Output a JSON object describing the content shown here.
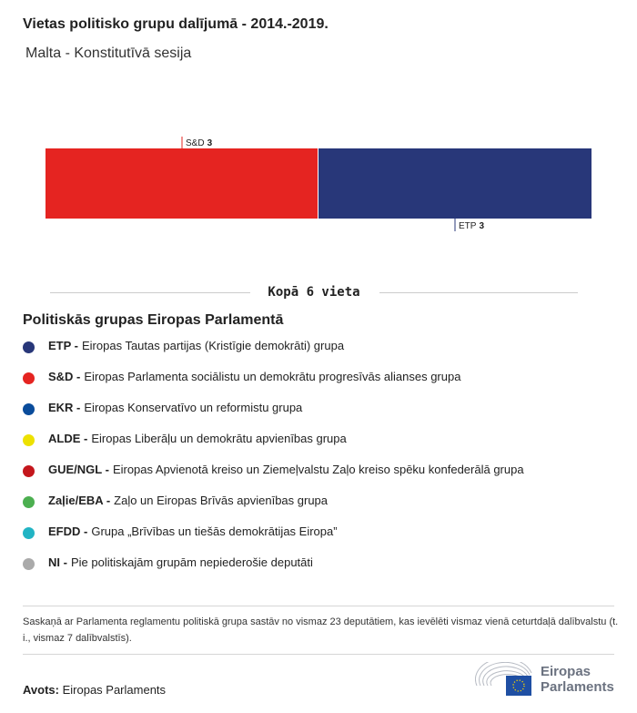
{
  "title": "Vietas politisko grupu dalījumā - 2014.-2019.",
  "subtitle": "Malta - Konstitutīvā sesija",
  "chart_data": {
    "type": "bar",
    "orientation": "horizontal-stacked",
    "categories": [
      "S&D",
      "ETP"
    ],
    "values": [
      3,
      3
    ],
    "colors": [
      "#e52421",
      "#283779"
    ],
    "label_positions": [
      "top",
      "bottom"
    ],
    "total": 6
  },
  "total_label": "Kopā 6 vieta",
  "legend_title": "Politiskās grupas Eiropas Parlamentā",
  "legend": [
    {
      "abbr": "ETP -",
      "name": "Eiropas Tautas partijas (Kristīgie demokrāti) grupa",
      "color": "#283779"
    },
    {
      "abbr": "S&D -",
      "name": "Eiropas Parlamenta sociālistu un demokrātu progresīvās alianses grupa",
      "color": "#e52421"
    },
    {
      "abbr": "EKR -",
      "name": "Eiropas Konservatīvo un reformistu grupa",
      "color": "#0a4c9b"
    },
    {
      "abbr": "ALDE -",
      "name": "Eiropas Liberāļu un demokrātu apvienības grupa",
      "color": "#ede100"
    },
    {
      "abbr": "GUE/NGL -",
      "name": "Eiropas Apvienotā kreiso un Ziemeļvalstu Zaļo kreiso spēku konfederālā grupa",
      "color": "#c4161c"
    },
    {
      "abbr": "Zaļie/EBA -",
      "name": "Zaļo un Eiropas Brīvās apvienības grupa",
      "color": "#4caf50"
    },
    {
      "abbr": "EFDD -",
      "name": "Grupa „Brīvības un tiešās demokrātijas Eiropa”",
      "color": "#22b4c4"
    },
    {
      "abbr": "NI -",
      "name": "Pie politiskajām grupām nepiederošie deputāti",
      "color": "#aaaaaa"
    }
  ],
  "note": "Saskaņā ar Parlamenta reglamentu politiskā grupa sastāv no vismaz 23 deputātiem, kas ievēlēti vismaz vienā ceturtdaļā dalībvalstu (t. i., vismaz 7 dalībvalstīs).",
  "source_label": "Avots:",
  "source_value": "Eiropas Parlaments",
  "logo": {
    "line1": "Eiropas",
    "line2": "Parlaments"
  }
}
